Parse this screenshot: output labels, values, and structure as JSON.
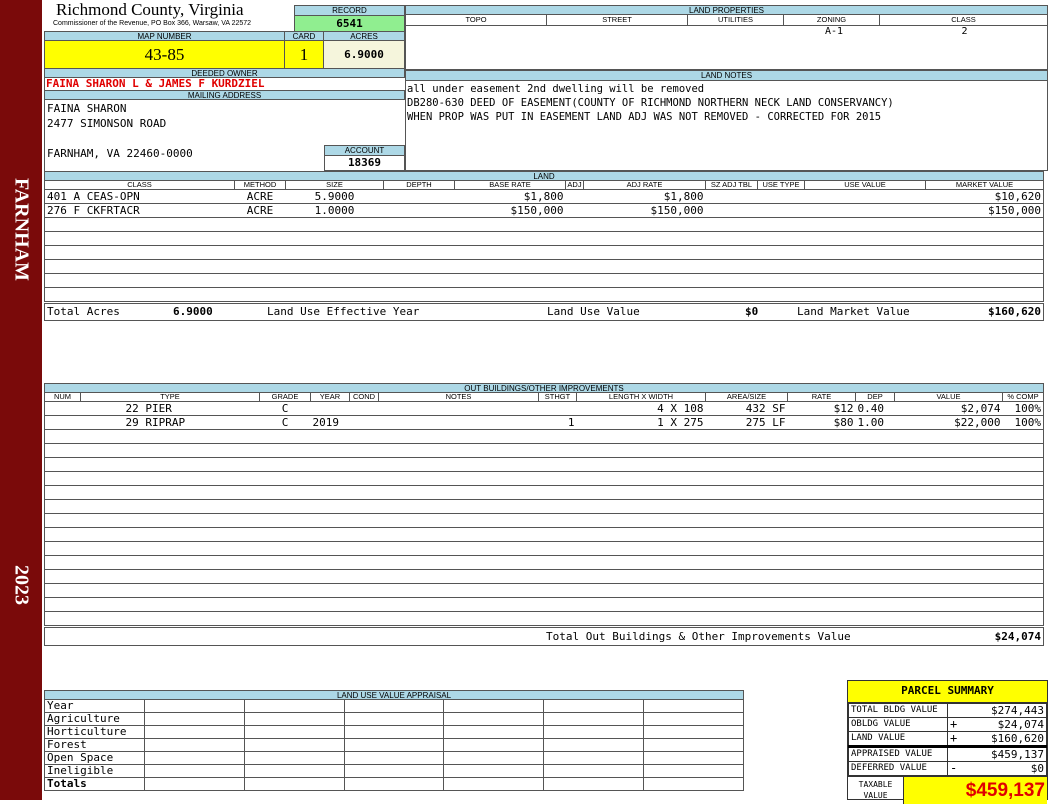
{
  "sidebar": {
    "town": "FARNHAM",
    "year": "2023"
  },
  "header": {
    "title": "Richmond County, Virginia",
    "subtitle": "Commissioner of the Revenue, PO Box 366, Warsaw, VA 22572",
    "record_label": "RECORD",
    "record": "6541"
  },
  "ids": {
    "map_label": "MAP NUMBER",
    "map": "43-85",
    "card_label": "CARD",
    "card": "1",
    "acres_label": "ACRES",
    "acres": "6.9000"
  },
  "land_properties": {
    "title": "LAND PROPERTIES",
    "headers": [
      "TOPO",
      "STREET",
      "UTILITIES",
      "ZONING",
      "CLASS"
    ],
    "values": [
      "",
      "",
      "",
      "A-1",
      "2"
    ]
  },
  "owner": {
    "label": "DEEDED OWNER",
    "name": "FAINA SHARON L & JAMES F KURDZIEL",
    "mailing_label": "MAILING ADDRESS",
    "address": [
      "FAINA SHARON",
      "2477 SIMONSON ROAD",
      "",
      "FARNHAM, VA 22460-0000"
    ],
    "account_label": "ACCOUNT",
    "account": "18369"
  },
  "land_notes": {
    "title": "LAND NOTES",
    "lines": [
      "all under easement 2nd dwelling will be removed",
      "DB280-630 DEED OF EASEMENT(COUNTY OF RICHMOND NORTHERN NECK LAND CONSERVANCY)",
      "WHEN PROP WAS PUT IN EASEMENT LAND ADJ WAS NOT REMOVED - CORRECTED FOR 2015"
    ]
  },
  "land": {
    "title": "LAND",
    "headers": [
      "CLASS",
      "METHOD",
      "SIZE",
      "DEPTH",
      "BASE RATE",
      "ADJ",
      "ADJ RATE",
      "SZ ADJ TBL",
      "USE TYPE",
      "USE VALUE",
      "MARKET VALUE"
    ],
    "rows": [
      [
        "401 A CEAS-OPN",
        "ACRE",
        "5.9000",
        "",
        "$1,800",
        "",
        "$1,800",
        "",
        "",
        "",
        "$10,620"
      ],
      [
        "276 F CKFRTACR",
        "ACRE",
        "1.0000",
        "",
        "$150,000",
        "",
        "$150,000",
        "",
        "",
        "",
        "$150,000"
      ]
    ],
    "total_acres_label": "Total Acres",
    "total_acres": "6.9000",
    "effective_year_label": "Land Use Effective Year",
    "use_value_label": "Land Use Value",
    "use_value": "$0",
    "market_value_label": "Land Market Value",
    "market_value": "$160,620"
  },
  "outbuildings": {
    "title": "OUT BUILDINGS/OTHER IMPROVEMENTS",
    "headers": [
      "NUM",
      "TYPE",
      "GRADE",
      "YEAR",
      "COND",
      "NOTES",
      "STHGT",
      "LENGTH X WIDTH",
      "AREA/SIZE",
      "RATE",
      "DEP",
      "VALUE",
      "% COMP"
    ],
    "rows": [
      [
        "",
        "22 PIER",
        "C",
        "",
        "",
        "",
        "",
        "4 X 108",
        "432 SF",
        "$12",
        "0.40",
        "$2,074",
        "100%"
      ],
      [
        "",
        "29 RIPRAP",
        "C",
        "2019",
        "",
        "",
        "1",
        "1 X 275",
        "275 LF",
        "$80",
        "1.00",
        "$22,000",
        "100%"
      ]
    ],
    "total_label": "Total Out Buildings & Other Improvements Value",
    "total": "$24,074"
  },
  "land_use_appraisal": {
    "title": "LAND USE VALUE APPRAISAL",
    "rows": [
      "Year",
      "Agriculture",
      "Horticulture",
      "Forest",
      "Open Space",
      "Ineligible",
      "Totals"
    ]
  },
  "parcel_summary": {
    "title": "PARCEL SUMMARY",
    "rows": [
      {
        "label": "TOTAL BLDG VALUE",
        "op": "",
        "value": "$274,443"
      },
      {
        "label": "OBLDG VALUE",
        "op": "+",
        "value": "$24,074"
      },
      {
        "label": "LAND VALUE",
        "op": "+",
        "value": "$160,620"
      },
      {
        "label": "APPRAISED VALUE",
        "op": "",
        "value": "$459,137"
      },
      {
        "label": "DEFERRED VALUE",
        "op": "-",
        "value": "$0"
      }
    ],
    "taxable_label": "TAXABLE VALUE",
    "taxable": "$459,137"
  },
  "colors": {
    "sidebar": "#7a0a0a",
    "header_blue": "#add8e6",
    "record_green": "#90ee90",
    "highlight_yellow": "#ffff00",
    "owner_red": "#e00000"
  }
}
